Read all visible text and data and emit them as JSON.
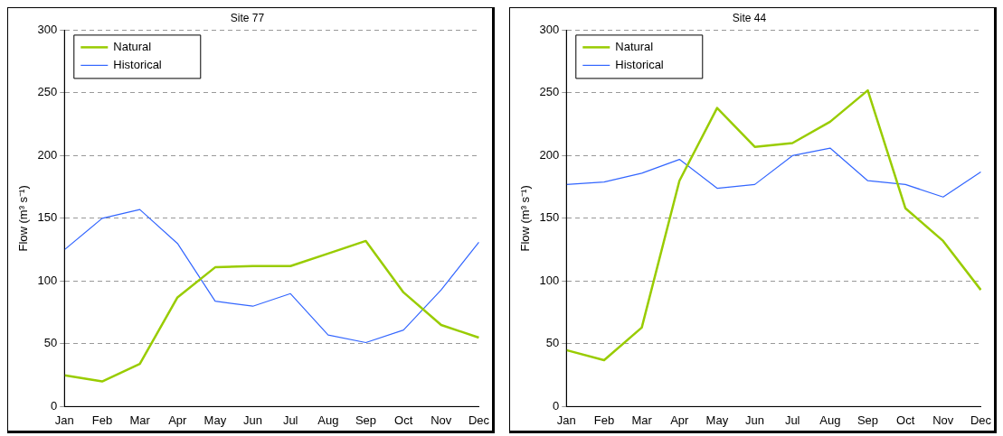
{
  "chart_data": [
    {
      "type": "line",
      "title": "Site 77",
      "ylabel": "Flow (m³ s⁻¹)",
      "categories": [
        "Jan",
        "Feb",
        "Mar",
        "Apr",
        "May",
        "Jun",
        "Jul",
        "Aug",
        "Sep",
        "Oct",
        "Nov",
        "Dec"
      ],
      "ylim": [
        0,
        300
      ],
      "yticks": [
        0,
        50,
        100,
        150,
        200,
        250,
        300
      ],
      "grid": "y",
      "legend": "top left",
      "marker": "none",
      "line_style": "solid",
      "series": [
        {
          "name": "Natural",
          "color": "#99cc00",
          "values": [
            25,
            20,
            34,
            87,
            111,
            112,
            112,
            122,
            132,
            91,
            65,
            55
          ]
        },
        {
          "name": "Historical",
          "color": "#3366ff",
          "values": [
            125,
            150,
            157,
            130,
            84,
            80,
            90,
            57,
            51,
            61,
            93,
            131
          ]
        }
      ]
    },
    {
      "type": "line",
      "title": "Site 44",
      "ylabel": "Flow (m³ s⁻¹)",
      "categories": [
        "Jan",
        "Feb",
        "Mar",
        "Apr",
        "May",
        "Jun",
        "Jul",
        "Aug",
        "Sep",
        "Oct",
        "Nov",
        "Dec"
      ],
      "ylim": [
        0,
        300
      ],
      "yticks": [
        0,
        50,
        100,
        150,
        200,
        250,
        300
      ],
      "grid": "y",
      "legend": "top left",
      "marker": "none",
      "line_style": "solid",
      "series": [
        {
          "name": "Natural",
          "color": "#99cc00",
          "values": [
            45,
            37,
            63,
            180,
            238,
            207,
            210,
            227,
            252,
            158,
            132,
            93
          ]
        },
        {
          "name": "Historical",
          "color": "#3366ff",
          "values": [
            177,
            179,
            186,
            197,
            174,
            177,
            200,
            206,
            180,
            177,
            167,
            187
          ]
        }
      ]
    }
  ]
}
